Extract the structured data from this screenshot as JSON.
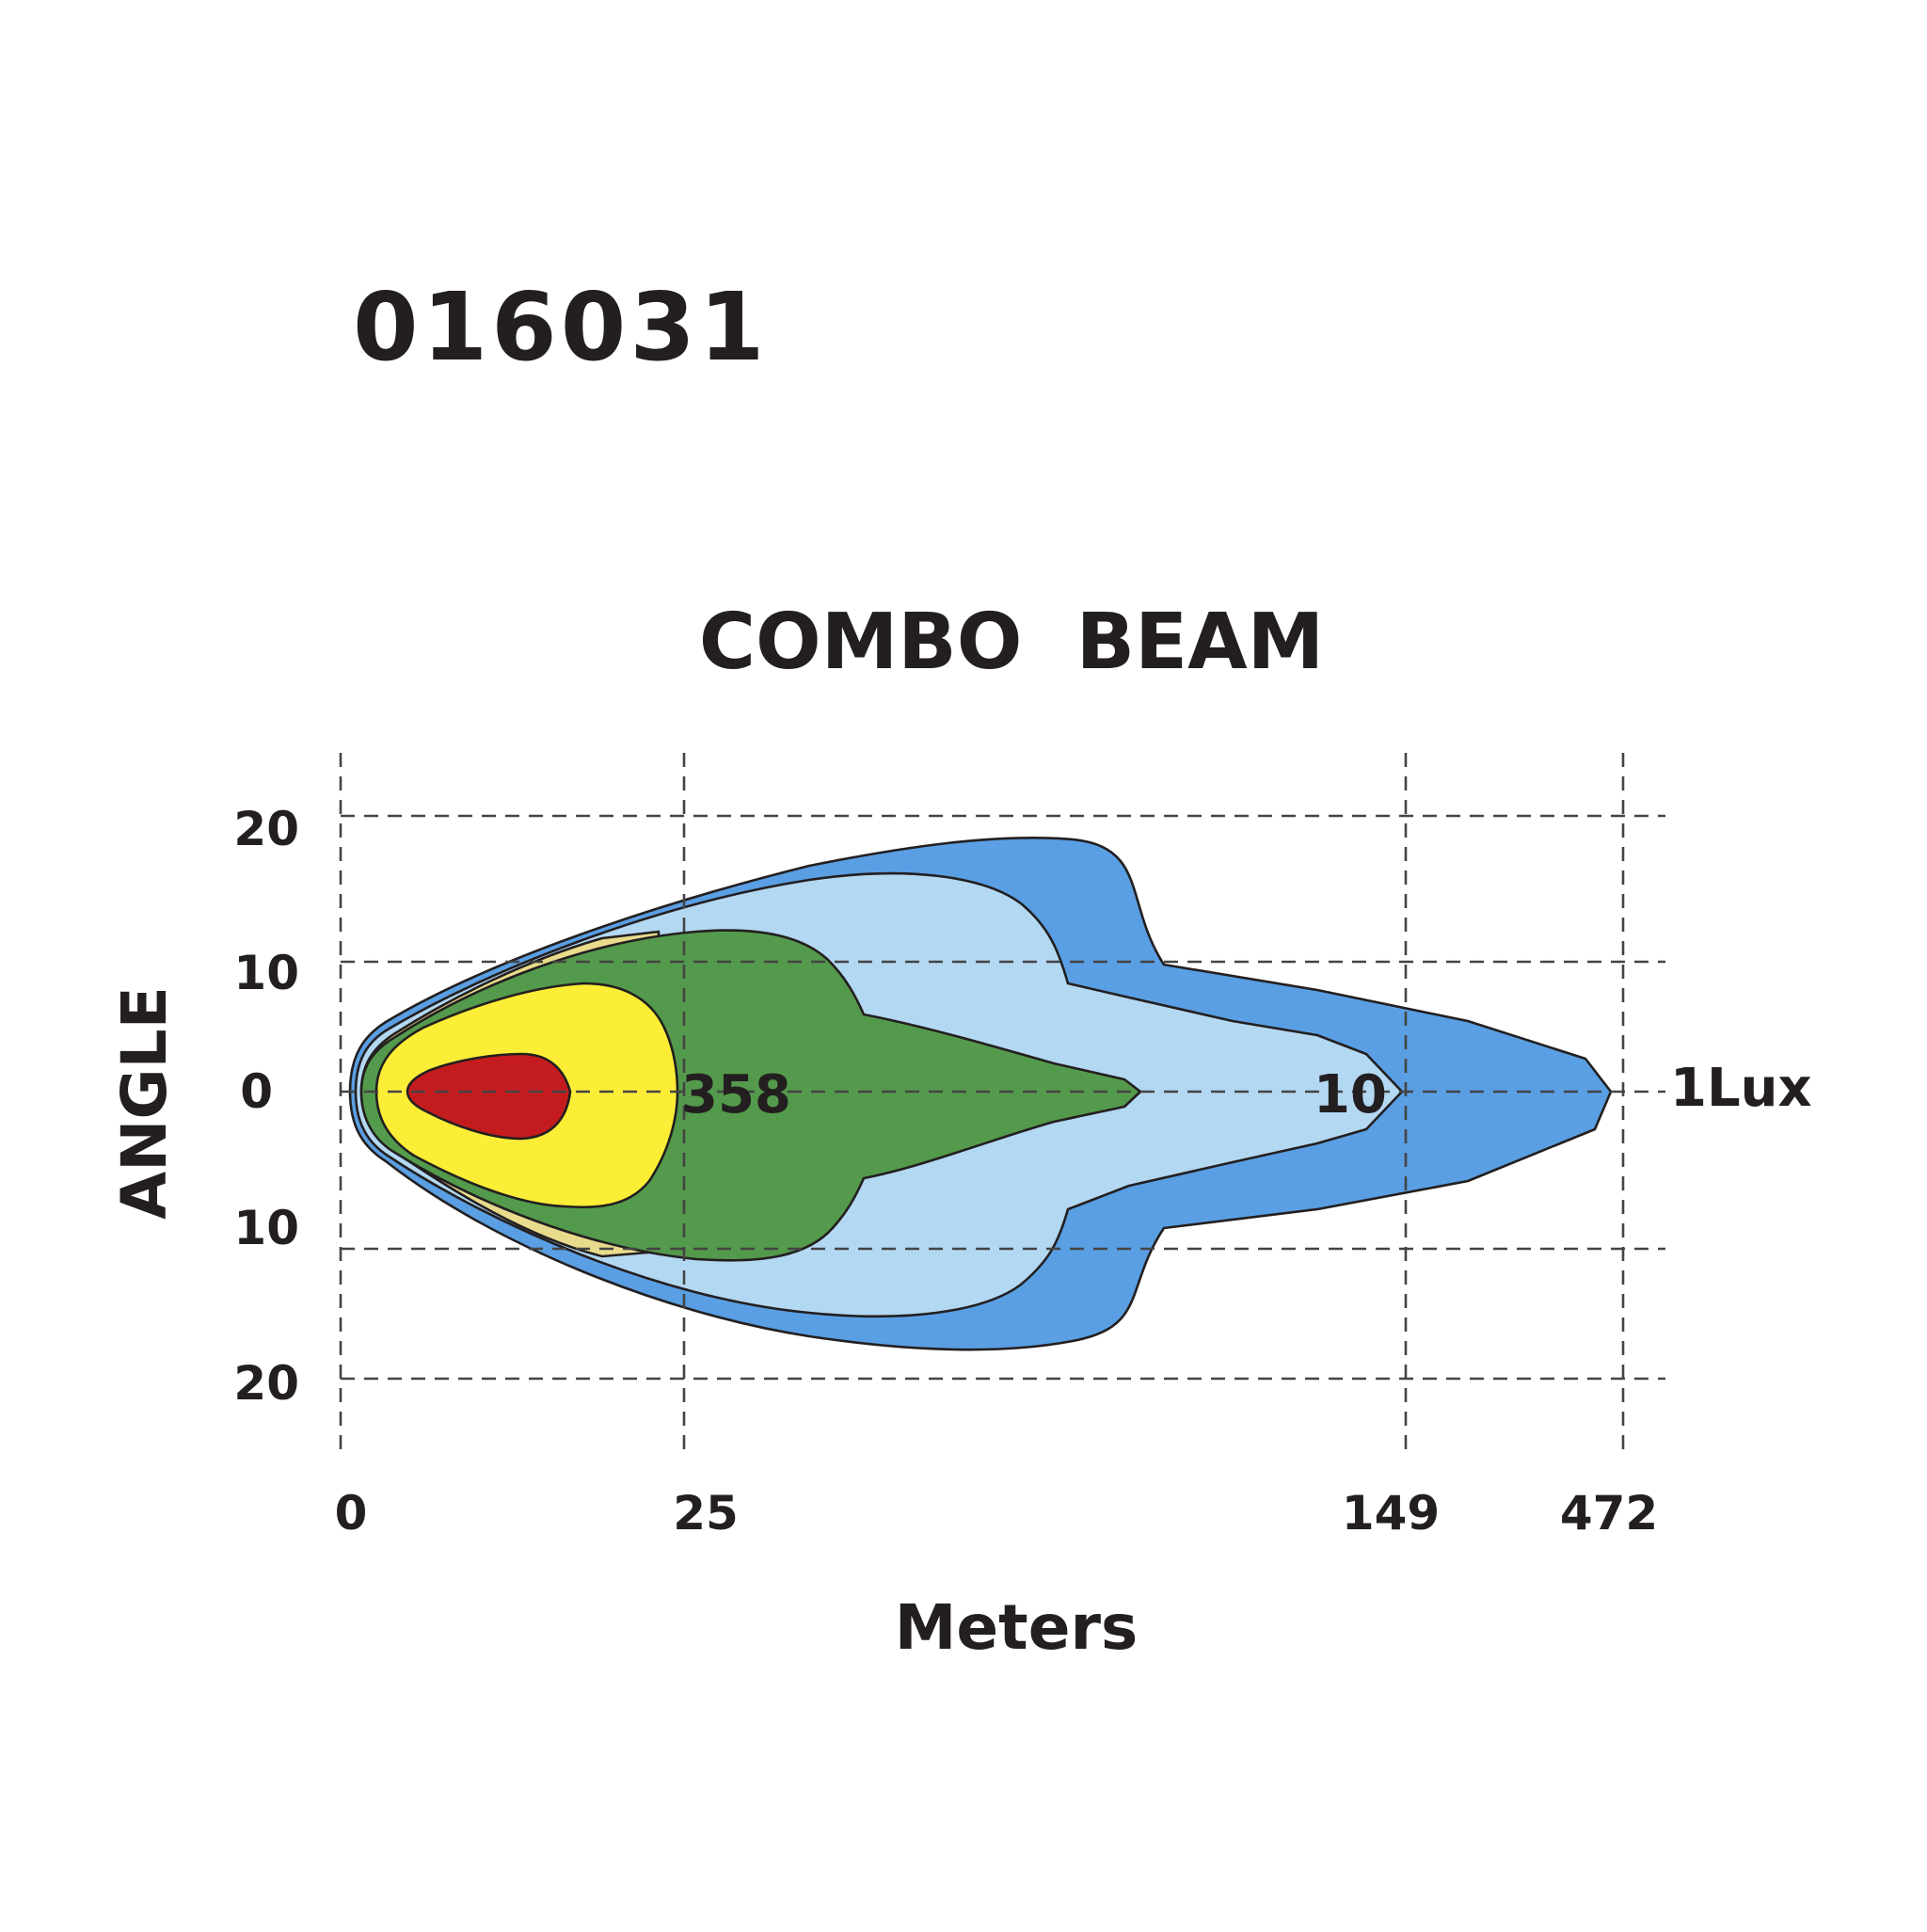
{
  "model_number": "016031",
  "chart_data": {
    "type": "area",
    "title": "COMBO  BEAM",
    "xlabel": "Meters",
    "ylabel": "ANGLE",
    "x_ticks": [
      "0",
      "25",
      "149",
      "472"
    ],
    "y_ticks": [
      "20",
      "10",
      "0",
      "10",
      "20"
    ],
    "grid": true,
    "zones": [
      {
        "name": "outer-blue",
        "color": "#5a9fe3"
      },
      {
        "name": "light-blue",
        "color": "#b3d8f2"
      },
      {
        "name": "tan",
        "color": "#e8dc8c"
      },
      {
        "name": "green",
        "color": "#549a4c"
      },
      {
        "name": "yellow",
        "color": "#fcee36"
      },
      {
        "name": "red",
        "color": "#c41c1e"
      }
    ],
    "annotations": [
      {
        "text": "358",
        "x": "25",
        "y": "0"
      },
      {
        "text": "10",
        "x": "149",
        "y": "0"
      },
      {
        "text": "1Lux",
        "x": "472",
        "y": "0"
      }
    ]
  }
}
